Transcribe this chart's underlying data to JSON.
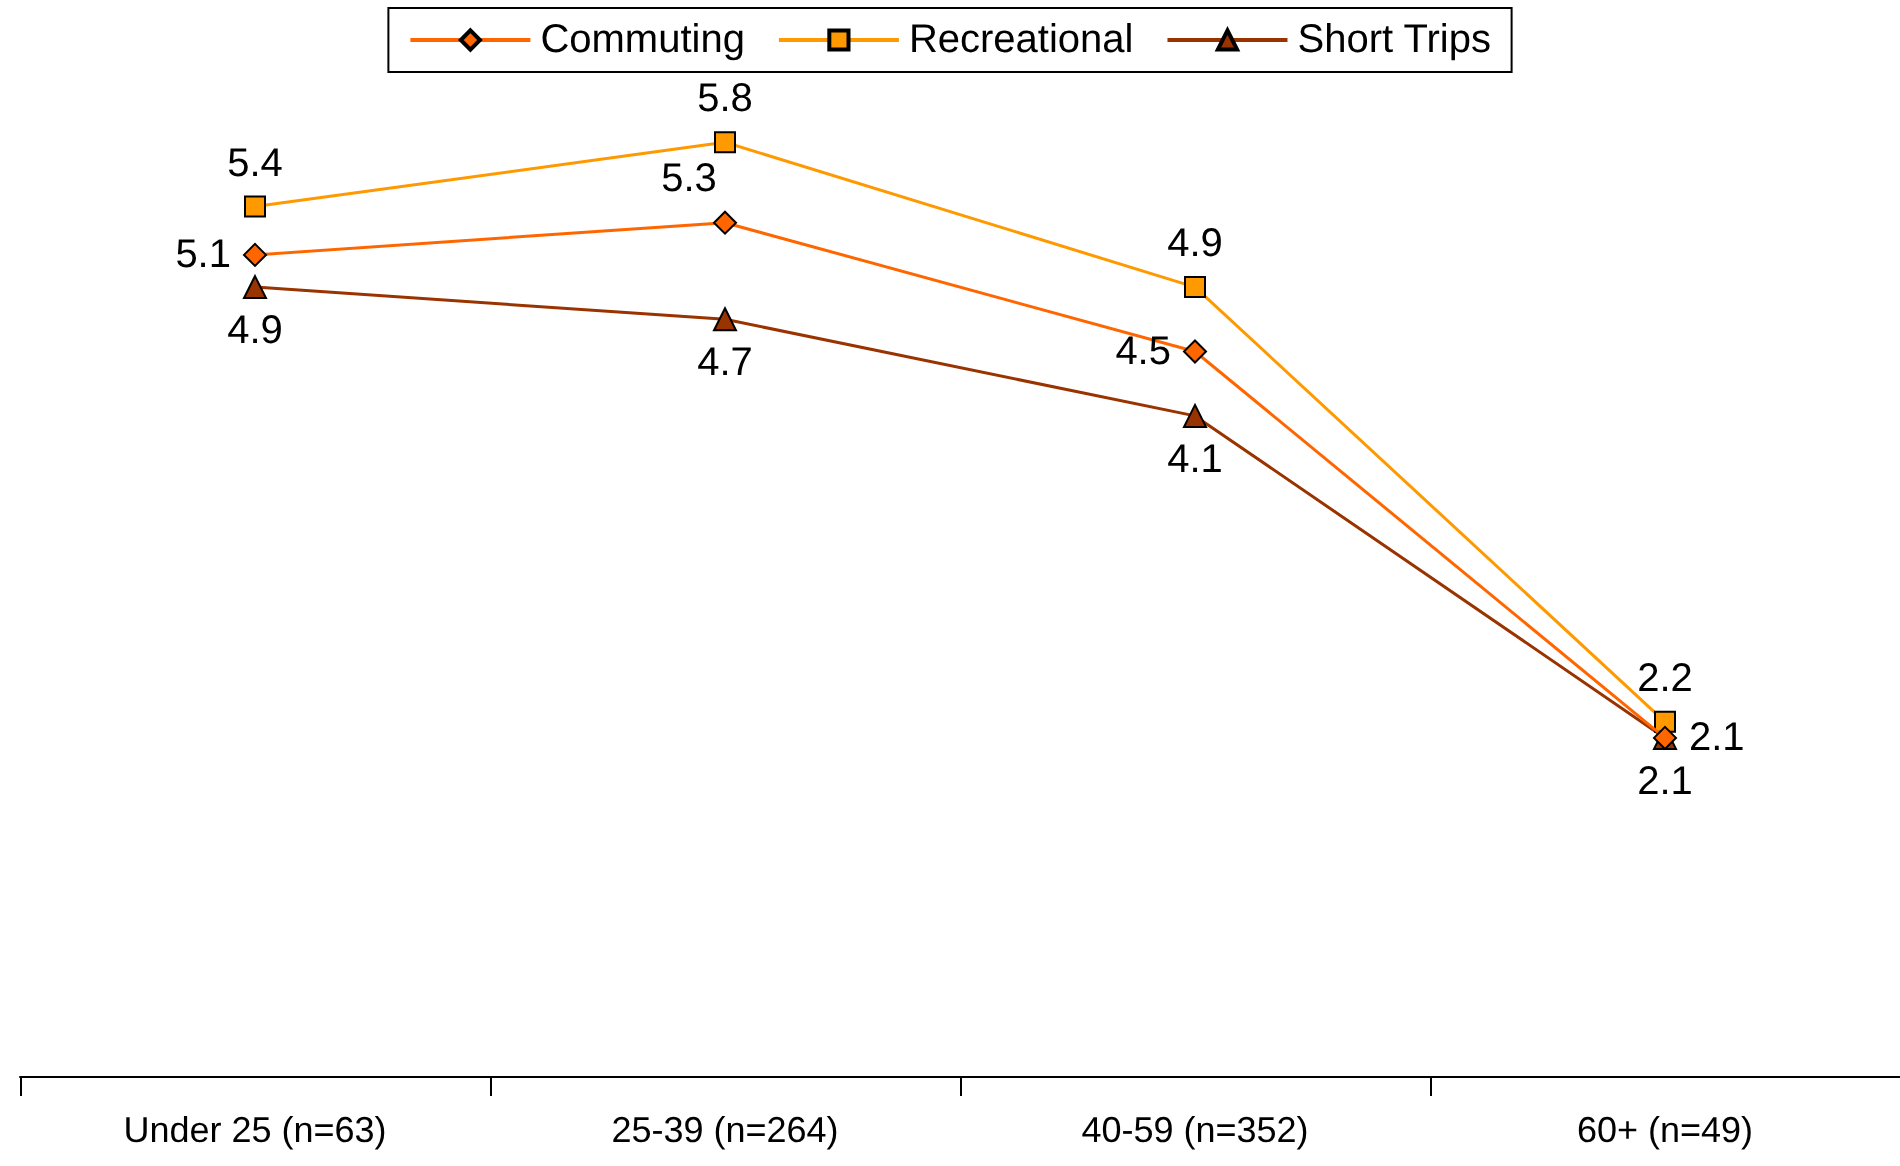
{
  "chart_data": {
    "type": "line",
    "categories": [
      "Under 25 (n=63)",
      "25-39 (n=264)",
      "40-59 (n=352)",
      "60+ (n=49)"
    ],
    "series": [
      {
        "name": "Commuting",
        "color": "#ff6600",
        "marker": "diamond",
        "values": [
          5.1,
          5.3,
          4.5,
          2.1
        ]
      },
      {
        "name": "Recreational",
        "color": "#ff9900",
        "marker": "square",
        "values": [
          5.4,
          5.8,
          4.9,
          2.2
        ]
      },
      {
        "name": "Short Trips",
        "color": "#993300",
        "marker": "triangle",
        "values": [
          4.9,
          4.7,
          4.1,
          2.1
        ]
      }
    ],
    "tick_labels": "x",
    "grid": false,
    "legend": "top",
    "data_labels": true
  }
}
